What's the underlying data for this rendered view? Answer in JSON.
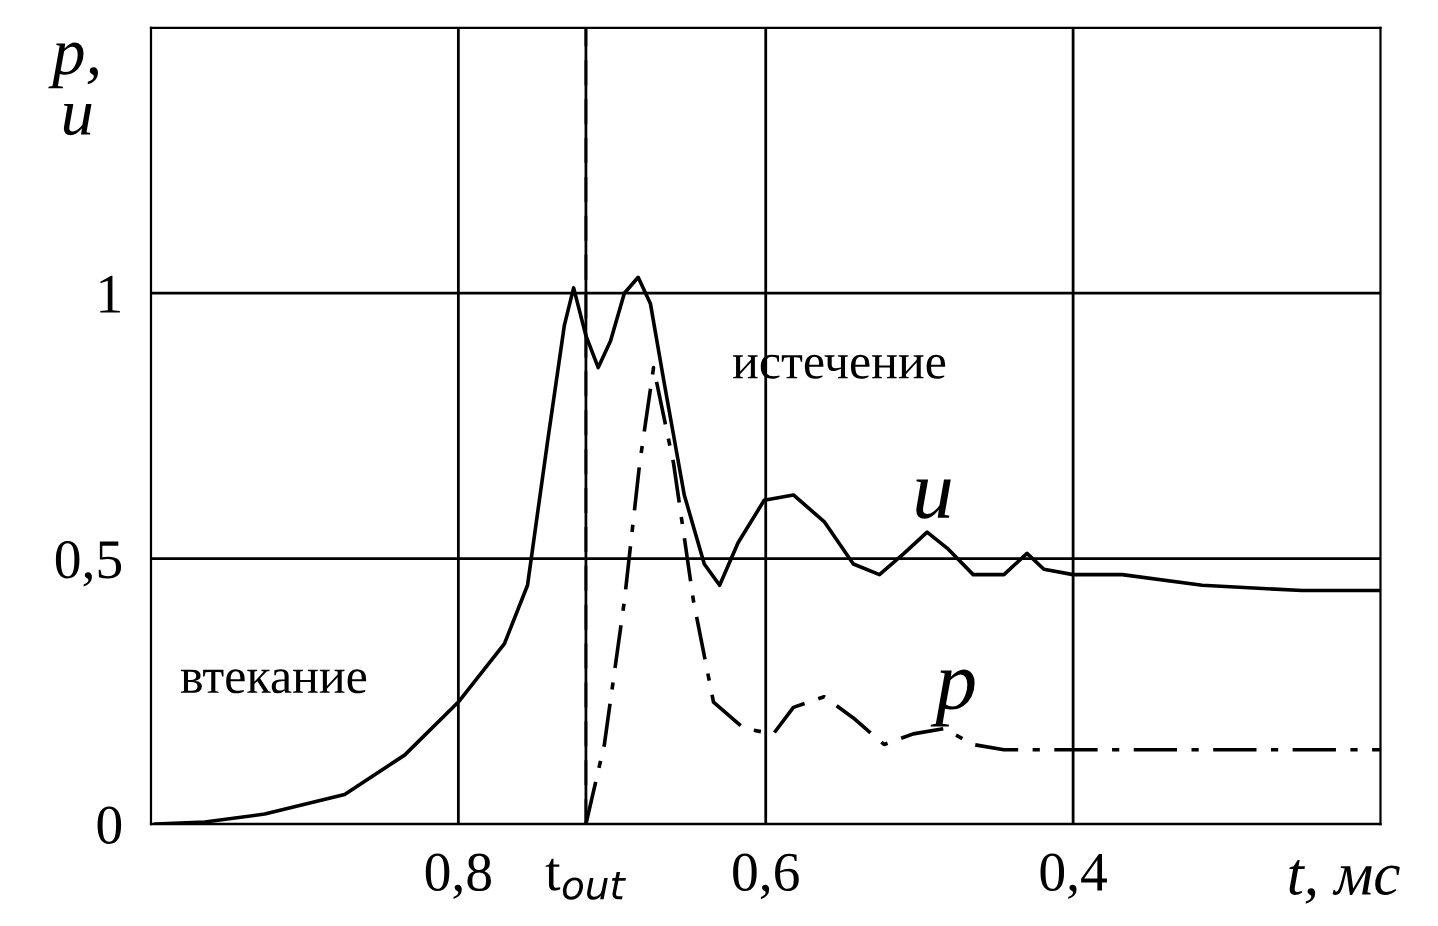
{
  "chart_data": {
    "type": "line",
    "xlabel": "t, мс",
    "ylabel": "p,\nu",
    "xlim": [
      1.0,
      0.2
    ],
    "ylim": [
      0,
      1.5
    ],
    "xticks": [
      {
        "value": 0.8,
        "label": "0,8"
      },
      {
        "value": 0.717,
        "label": "t$_{out}$"
      },
      {
        "value": 0.6,
        "label": "0,6"
      },
      {
        "value": 0.4,
        "label": "0,4"
      }
    ],
    "yticks": [
      0,
      {
        "value": 0.5,
        "label": "0,5"
      },
      1
    ],
    "grid": true,
    "ref_lines": [
      {
        "axis": "x",
        "value": 0.717,
        "color": "#000000",
        "line_style": "dashed"
      }
    ],
    "series": [
      {
        "color": "#000000",
        "line_style": "solid",
        "x": [
          0.997,
          0.965,
          0.926,
          0.874,
          0.835,
          0.8,
          0.77,
          0.755,
          0.742,
          0.731,
          0.725,
          0.717,
          0.709,
          0.701,
          0.692,
          0.683,
          0.675,
          0.666,
          0.653,
          0.64,
          0.63,
          0.618,
          0.601,
          0.582,
          0.562,
          0.543,
          0.526,
          0.51,
          0.495,
          0.482,
          0.465,
          0.445,
          0.43,
          0.419,
          0.4,
          0.368,
          0.316,
          0.251,
          0.2
        ],
        "values": [
          0,
          0.004,
          0.019,
          0.056,
          0.13,
          0.23,
          0.34,
          0.45,
          0.72,
          0.94,
          1.01,
          0.92,
          0.86,
          0.91,
          1.0,
          1.03,
          0.98,
          0.83,
          0.62,
          0.49,
          0.45,
          0.53,
          0.61,
          0.62,
          0.57,
          0.49,
          0.47,
          0.51,
          0.55,
          0.52,
          0.47,
          0.47,
          0.51,
          0.48,
          0.47,
          0.47,
          0.45,
          0.44,
          0.44
        ]
      },
      {
        "color": "#000000",
        "line_style": "dashdot",
        "x": [
          0.717,
          0.705,
          0.692,
          0.682,
          0.673,
          0.66,
          0.647,
          0.634,
          0.614,
          0.595,
          0.582,
          0.562,
          0.543,
          0.523,
          0.504,
          0.484,
          0.465,
          0.445,
          0.4,
          0.316,
          0.2
        ],
        "values": [
          0,
          0.15,
          0.42,
          0.68,
          0.86,
          0.68,
          0.42,
          0.23,
          0.18,
          0.17,
          0.22,
          0.24,
          0.2,
          0.15,
          0.17,
          0.18,
          0.15,
          0.14,
          0.14,
          0.14,
          0.14
        ]
      }
    ],
    "annotations": [
      "втекание",
      "истечение",
      "u",
      "p"
    ]
  }
}
